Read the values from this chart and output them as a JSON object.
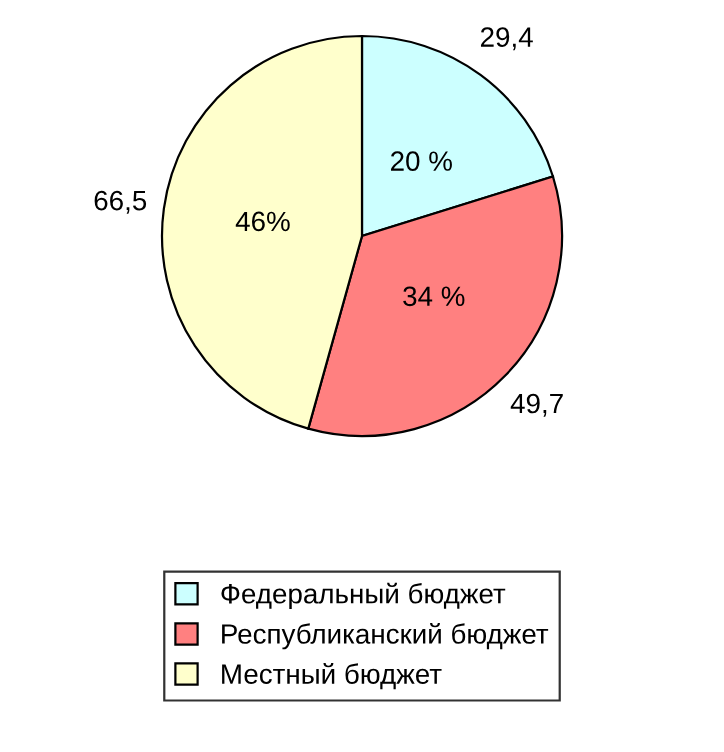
{
  "chart_data": {
    "type": "pie",
    "categories": [
      "Федеральный бюджет",
      "Республиканский бюджет",
      "Местный бюджет"
    ],
    "values": [
      29.4,
      49.7,
      66.5
    ],
    "value_labels": [
      "29,4",
      "49,7",
      "66,5"
    ],
    "colors": [
      "#ccffff",
      "#ff8080",
      "#ffffcc"
    ],
    "annotations": [
      "20 %",
      "34 %",
      "46%"
    ],
    "legend": "bottom"
  }
}
